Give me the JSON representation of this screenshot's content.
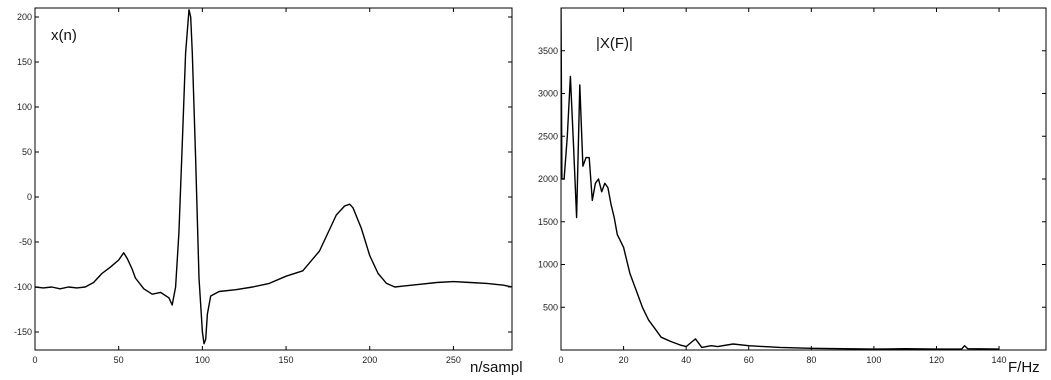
{
  "chart_data": [
    {
      "type": "line",
      "title": "x(n)",
      "xlabel": "n/sampl",
      "xlim": [
        0,
        285
      ],
      "ylim": [
        -170,
        210
      ],
      "xticks": [
        0,
        50,
        100,
        150,
        200,
        250
      ],
      "yticks": [
        -150,
        -100,
        -50,
        0,
        50,
        100,
        150,
        200
      ],
      "grid": false,
      "series": [
        {
          "x": [
            0,
            5,
            10,
            15,
            20,
            25,
            30,
            35,
            40,
            45,
            50,
            53,
            55,
            58,
            60,
            65,
            70,
            75,
            80,
            82,
            84,
            86,
            88,
            90,
            92,
            93,
            94,
            96,
            98,
            100,
            101,
            102,
            103,
            105,
            110,
            120,
            130,
            140,
            150,
            160,
            170,
            175,
            180,
            185,
            188,
            190,
            195,
            200,
            205,
            210,
            215,
            220,
            225,
            230,
            240,
            250,
            260,
            270,
            280,
            285
          ],
          "values": [
            -100,
            -101,
            -100,
            -102,
            -100,
            -101,
            -100,
            -95,
            -85,
            -78,
            -70,
            -62,
            -68,
            -80,
            -90,
            -102,
            -108,
            -106,
            -112,
            -120,
            -100,
            -40,
            60,
            160,
            208,
            200,
            160,
            40,
            -90,
            -150,
            -163,
            -158,
            -130,
            -110,
            -105,
            -103,
            -100,
            -96,
            -88,
            -82,
            -60,
            -40,
            -20,
            -10,
            -8,
            -12,
            -35,
            -65,
            -85,
            -96,
            -100,
            -99,
            -98,
            -97,
            -95,
            -94,
            -95,
            -96,
            -98,
            -100
          ]
        }
      ]
    },
    {
      "type": "line",
      "title": "|X(F)|",
      "xlabel": "F/Hz",
      "xlim": [
        0,
        155
      ],
      "ylim": [
        0,
        4000
      ],
      "xticks": [
        0,
        20,
        40,
        60,
        80,
        100,
        120,
        140
      ],
      "yticks": [
        500,
        1000,
        1500,
        2000,
        2500,
        3000,
        3500
      ],
      "grid": false,
      "series": [
        {
          "x": [
            0,
            0.3,
            1,
            2,
            3,
            4,
            5,
            6,
            7,
            8,
            9,
            10,
            11,
            12,
            13,
            14,
            15,
            16,
            17,
            18,
            20,
            22,
            24,
            26,
            28,
            30,
            32,
            35,
            38,
            40,
            42,
            43,
            45,
            48,
            50,
            55,
            60,
            65,
            70,
            80,
            90,
            100,
            110,
            120,
            128,
            129,
            130,
            140
          ],
          "values": [
            4000,
            2000,
            2000,
            2500,
            3200,
            2400,
            1550,
            3100,
            2150,
            2250,
            2250,
            1750,
            1950,
            2000,
            1850,
            1950,
            1900,
            1700,
            1550,
            1350,
            1200,
            900,
            700,
            500,
            350,
            250,
            150,
            100,
            60,
            40,
            100,
            130,
            30,
            50,
            40,
            70,
            50,
            40,
            30,
            20,
            15,
            10,
            15,
            10,
            10,
            50,
            15,
            10
          ]
        }
      ]
    }
  ]
}
